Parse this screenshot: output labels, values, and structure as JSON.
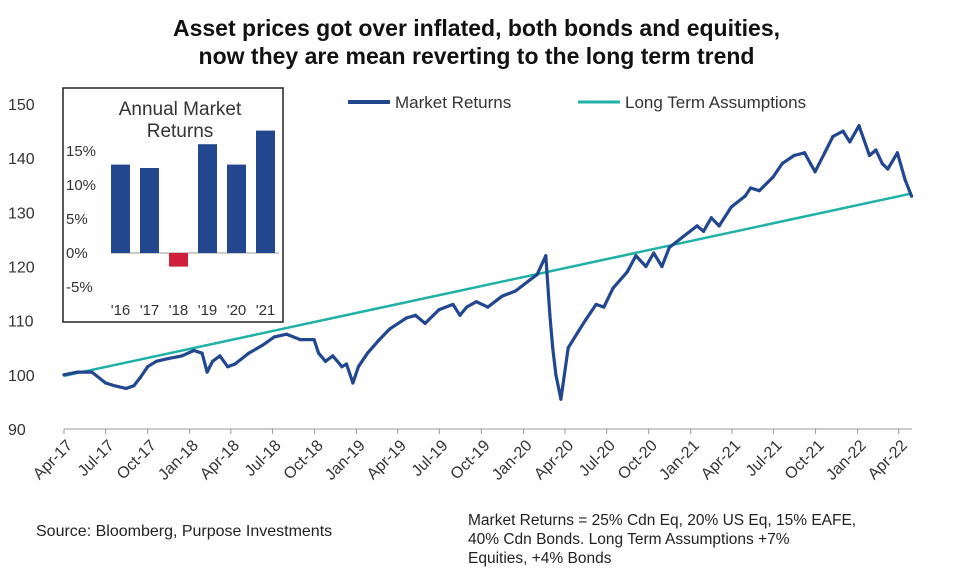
{
  "title": {
    "line1": "Asset prices got over inflated, both bonds and equities,",
    "line2": "now they are mean reverting to the long term trend"
  },
  "notes": {
    "source": "Source: Bloomberg, Purpose Investments",
    "definition_line1": "Market Returns = 25% Cdn Eq, 20% US Eq, 15% EAFE,",
    "definition_line2": "40% Cdn Bonds.  Long Term Assumptions +7%",
    "definition_line3": "Equities, +4% Bonds"
  },
  "colors": {
    "market": "#22478f",
    "trend": "#1fb0a6",
    "bar_positive": "#22478f",
    "bar_negative": "#cf1f3a",
    "axis": "#999999",
    "text": "#333333"
  },
  "chart_data": [
    {
      "type": "line",
      "title": "",
      "xlabel": "",
      "ylabel": "",
      "ylim": [
        90,
        150
      ],
      "yticks": [
        90,
        100,
        110,
        120,
        130,
        140,
        150
      ],
      "xlim": [
        "2017-04-01",
        "2022-04-30"
      ],
      "xticks": [
        {
          "date": "2017-04-01",
          "label": "Apr-17"
        },
        {
          "date": "2017-07-01",
          "label": "Jul-17"
        },
        {
          "date": "2017-10-01",
          "label": "Oct-17"
        },
        {
          "date": "2018-01-01",
          "label": "Jan-18"
        },
        {
          "date": "2018-04-01",
          "label": "Apr-18"
        },
        {
          "date": "2018-07-01",
          "label": "Jul-18"
        },
        {
          "date": "2018-10-01",
          "label": "Oct-18"
        },
        {
          "date": "2019-01-01",
          "label": "Jan-19"
        },
        {
          "date": "2019-04-01",
          "label": "Apr-19"
        },
        {
          "date": "2019-07-01",
          "label": "Jul-19"
        },
        {
          "date": "2019-10-01",
          "label": "Oct-19"
        },
        {
          "date": "2020-01-01",
          "label": "Jan-20"
        },
        {
          "date": "2020-04-01",
          "label": "Apr-20"
        },
        {
          "date": "2020-07-01",
          "label": "Jul-20"
        },
        {
          "date": "2020-10-01",
          "label": "Oct-20"
        },
        {
          "date": "2021-01-01",
          "label": "Jan-21"
        },
        {
          "date": "2021-04-01",
          "label": "Apr-21"
        },
        {
          "date": "2021-07-01",
          "label": "Jul-21"
        },
        {
          "date": "2021-10-01",
          "label": "Oct-21"
        },
        {
          "date": "2022-01-01",
          "label": "Jan-22"
        },
        {
          "date": "2022-04-01",
          "label": "Apr-22"
        }
      ],
      "grid": false,
      "legend": "top-right",
      "series": [
        {
          "name": "Market Returns",
          "x": [
            "2017-04-01",
            "2017-05-01",
            "2017-06-01",
            "2017-07-01",
            "2017-07-20",
            "2017-08-15",
            "2017-09-01",
            "2017-09-15",
            "2017-10-01",
            "2017-10-20",
            "2017-11-15",
            "2017-12-15",
            "2018-01-10",
            "2018-01-28",
            "2018-02-08",
            "2018-02-20",
            "2018-03-08",
            "2018-03-25",
            "2018-04-10",
            "2018-05-10",
            "2018-06-10",
            "2018-07-05",
            "2018-08-01",
            "2018-08-31",
            "2018-09-30",
            "2018-10-10",
            "2018-10-25",
            "2018-11-10",
            "2018-11-30",
            "2018-12-10",
            "2018-12-24",
            "2019-01-05",
            "2019-01-25",
            "2019-02-20",
            "2019-03-15",
            "2019-04-20",
            "2019-05-10",
            "2019-05-31",
            "2019-06-30",
            "2019-07-31",
            "2019-08-15",
            "2019-08-30",
            "2019-09-20",
            "2019-10-15",
            "2019-11-15",
            "2019-12-15",
            "2020-01-15",
            "2020-01-31",
            "2020-02-19",
            "2020-02-28",
            "2020-03-05",
            "2020-03-12",
            "2020-03-23",
            "2020-04-08",
            "2020-04-30",
            "2020-05-15",
            "2020-06-08",
            "2020-06-25",
            "2020-07-15",
            "2020-08-15",
            "2020-09-03",
            "2020-09-25",
            "2020-10-12",
            "2020-10-30",
            "2020-11-15",
            "2020-12-15",
            "2021-01-15",
            "2021-01-29",
            "2021-02-15",
            "2021-03-04",
            "2021-03-31",
            "2021-04-30",
            "2021-05-12",
            "2021-05-31",
            "2021-06-30",
            "2021-07-20",
            "2021-08-15",
            "2021-09-07",
            "2021-09-20",
            "2021-09-30",
            "2021-10-21",
            "2021-11-08",
            "2021-11-30",
            "2021-12-15",
            "2022-01-04",
            "2022-01-27",
            "2022-02-10",
            "2022-02-24",
            "2022-03-08",
            "2022-03-29",
            "2022-04-15",
            "2022-04-29"
          ],
          "values": [
            100,
            100.5,
            100.5,
            98.5,
            98,
            97.5,
            98,
            99.5,
            101.5,
            102.5,
            103,
            103.5,
            104.5,
            104,
            100.5,
            102.5,
            103.5,
            101.5,
            102,
            104,
            105.5,
            107,
            107.5,
            106.5,
            106.5,
            104,
            102.5,
            103.5,
            101.5,
            102,
            98.5,
            101.5,
            104,
            106.5,
            108.5,
            110.5,
            111,
            109.5,
            112,
            113,
            111,
            112.5,
            113.5,
            112.5,
            114.5,
            115.5,
            117.5,
            118.5,
            122,
            111,
            105,
            100,
            95.5,
            105,
            108,
            110,
            113,
            112.5,
            116,
            119,
            122,
            120,
            122.5,
            120,
            123.5,
            125.5,
            127.5,
            126.5,
            129,
            127.5,
            131,
            133,
            134.5,
            134,
            136.5,
            139,
            140.5,
            141,
            139,
            137.5,
            141,
            144,
            145,
            143,
            146,
            140.5,
            141.5,
            139,
            138,
            141,
            136,
            133
          ]
        },
        {
          "name": "Long Term Assumptions",
          "x": [
            "2017-04-01",
            "2022-04-30"
          ],
          "values": [
            99.8,
            133.5
          ]
        }
      ]
    },
    {
      "type": "bar",
      "title": "Annual Market Returns",
      "categories": [
        "'16",
        "'17",
        "'18",
        "'19",
        "'20",
        "'21"
      ],
      "values": [
        13,
        12.5,
        -2,
        16,
        13,
        18
      ],
      "ylim": [
        -10,
        20
      ],
      "yticks": [
        -5,
        0,
        5,
        10,
        15
      ],
      "ytick_labels": [
        "-5%",
        "0%",
        "5%",
        "10%",
        "15%"
      ],
      "grid": false
    }
  ]
}
